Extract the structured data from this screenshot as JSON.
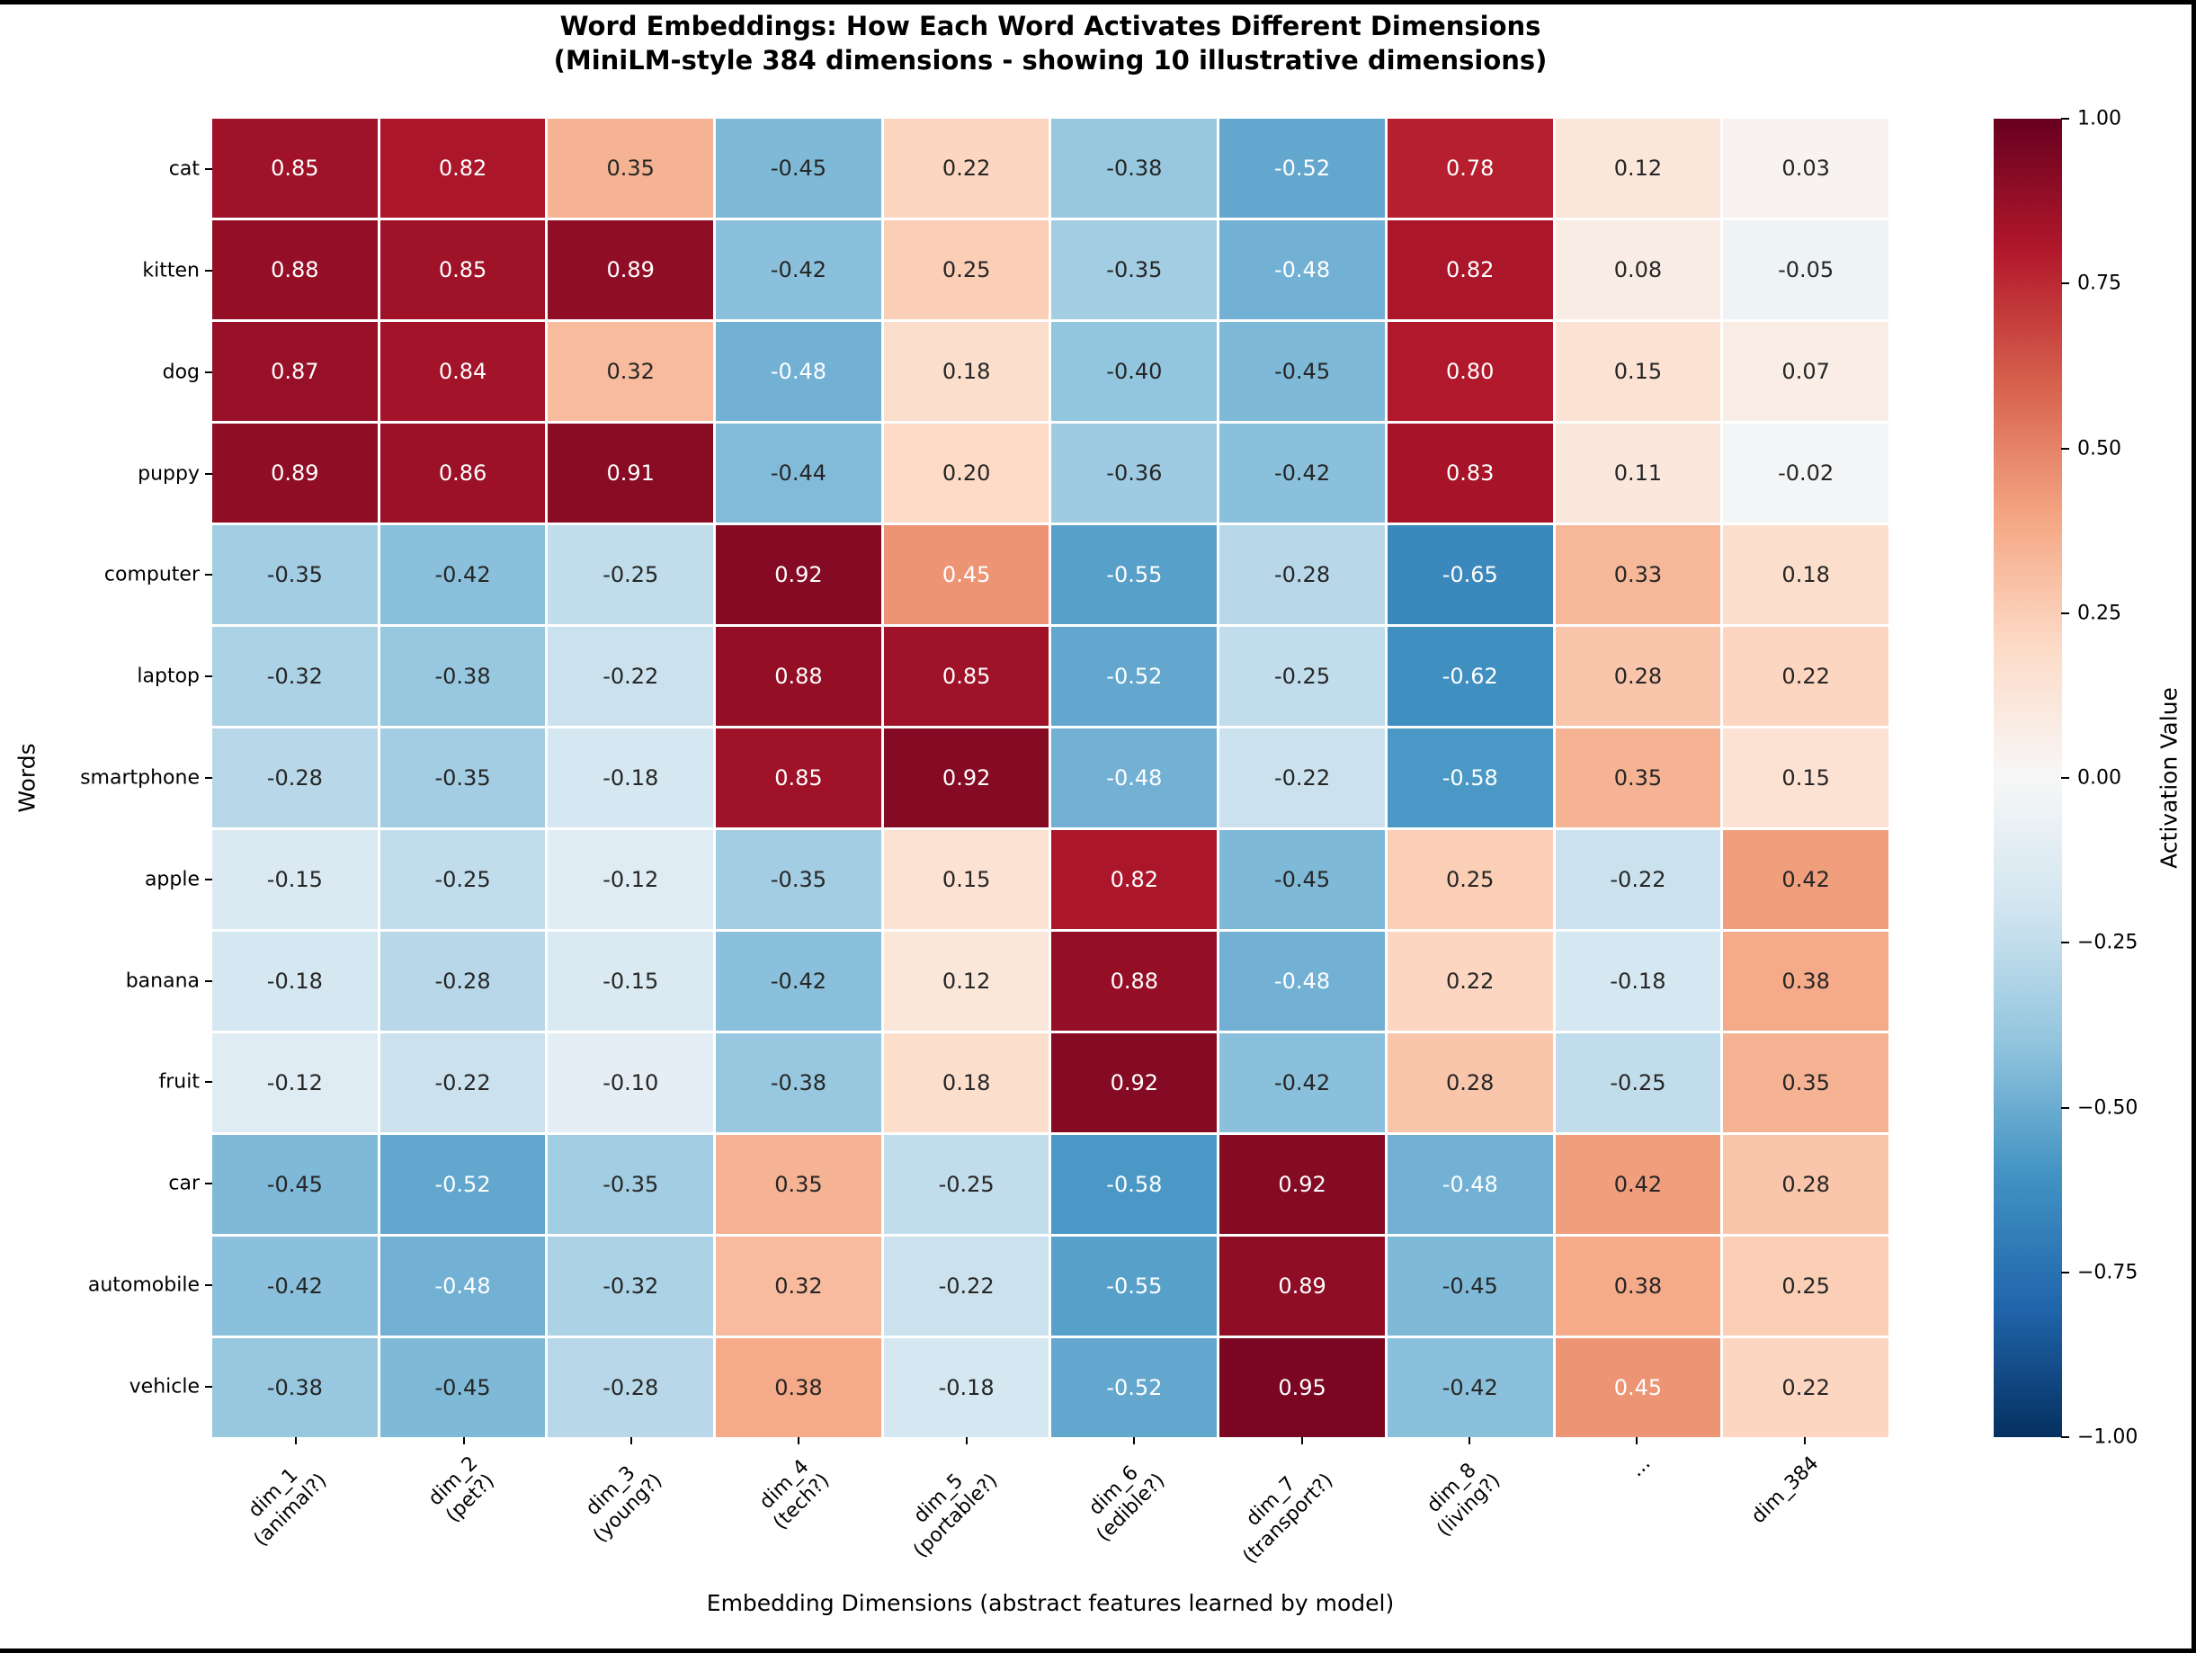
{
  "title": {
    "line1": "Word Embeddings: How Each Word Activates Different Dimensions",
    "line2": "(MiniLM-style 384 dimensions - showing 10 illustrative dimensions)"
  },
  "axes": {
    "xlabel": "Embedding Dimensions (abstract features learned by model)",
    "ylabel": "Words"
  },
  "colorbar": {
    "label": "Activation Value",
    "ticks": [
      "1.00",
      "0.75",
      "0.50",
      "0.25",
      "0.00",
      "−0.25",
      "−0.50",
      "−0.75",
      "−1.00"
    ]
  },
  "chart_data": {
    "type": "heatmap",
    "rows": [
      "cat",
      "kitten",
      "dog",
      "puppy",
      "computer",
      "laptop",
      "smartphone",
      "apple",
      "banana",
      "fruit",
      "car",
      "automobile",
      "vehicle"
    ],
    "columns": [
      {
        "label": "dim_1",
        "sublabel": "(animal?)"
      },
      {
        "label": "dim_2",
        "sublabel": "(pet?)"
      },
      {
        "label": "dim_3",
        "sublabel": "(young?)"
      },
      {
        "label": "dim_4",
        "sublabel": "(tech?)"
      },
      {
        "label": "dim_5",
        "sublabel": "(portable?)"
      },
      {
        "label": "dim_6",
        "sublabel": "(edible?)"
      },
      {
        "label": "dim_7",
        "sublabel": "(transport?)"
      },
      {
        "label": "dim_8",
        "sublabel": "(living?)"
      },
      {
        "label": "...",
        "sublabel": ""
      },
      {
        "label": "dim_384",
        "sublabel": ""
      }
    ],
    "values": [
      [
        0.85,
        0.82,
        0.35,
        -0.45,
        0.22,
        -0.38,
        -0.52,
        0.78,
        0.12,
        0.03
      ],
      [
        0.88,
        0.85,
        0.89,
        -0.42,
        0.25,
        -0.35,
        -0.48,
        0.82,
        0.08,
        -0.05
      ],
      [
        0.87,
        0.84,
        0.32,
        -0.48,
        0.18,
        -0.4,
        -0.45,
        0.8,
        0.15,
        0.07
      ],
      [
        0.89,
        0.86,
        0.91,
        -0.44,
        0.2,
        -0.36,
        -0.42,
        0.83,
        0.11,
        -0.02
      ],
      [
        -0.35,
        -0.42,
        -0.25,
        0.92,
        0.45,
        -0.55,
        -0.28,
        -0.65,
        0.33,
        0.18
      ],
      [
        -0.32,
        -0.38,
        -0.22,
        0.88,
        0.85,
        -0.52,
        -0.25,
        -0.62,
        0.28,
        0.22
      ],
      [
        -0.28,
        -0.35,
        -0.18,
        0.85,
        0.92,
        -0.48,
        -0.22,
        -0.58,
        0.35,
        0.15
      ],
      [
        -0.15,
        -0.25,
        -0.12,
        -0.35,
        0.15,
        0.82,
        -0.45,
        0.25,
        -0.22,
        0.42
      ],
      [
        -0.18,
        -0.28,
        -0.15,
        -0.42,
        0.12,
        0.88,
        -0.48,
        0.22,
        -0.18,
        0.38
      ],
      [
        -0.12,
        -0.22,
        -0.1,
        -0.38,
        0.18,
        0.92,
        -0.42,
        0.28,
        -0.25,
        0.35
      ],
      [
        -0.45,
        -0.52,
        -0.35,
        0.35,
        -0.25,
        -0.58,
        0.92,
        -0.48,
        0.42,
        0.28
      ],
      [
        -0.42,
        -0.48,
        -0.32,
        0.32,
        -0.22,
        -0.55,
        0.89,
        -0.45,
        0.38,
        0.25
      ],
      [
        -0.38,
        -0.45,
        -0.28,
        0.38,
        -0.18,
        -0.52,
        0.95,
        -0.42,
        0.45,
        0.22
      ]
    ],
    "vmin": -1,
    "vmax": 1,
    "colormap": "RdBu_r",
    "colormap_stops": [
      "#053061",
      "#2166ac",
      "#4393c3",
      "#92c5de",
      "#d1e5f0",
      "#f7f7f7",
      "#fddbc7",
      "#f4a582",
      "#d6604d",
      "#b2182b",
      "#67001f"
    ],
    "annotation_text_colors": {
      "light": "#ffffff",
      "dark": "#262626"
    },
    "value_format": "0.00",
    "legend_position": "right",
    "grid": false
  }
}
